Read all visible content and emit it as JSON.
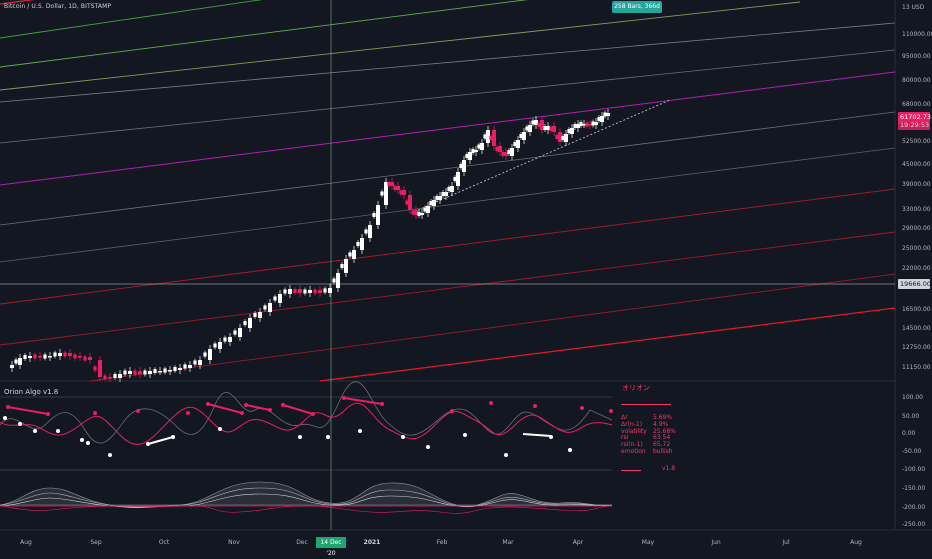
{
  "header": {
    "title": "Bitcoin / U.S. Dollar, 1D, BITSTAMP",
    "bars_badge": "258 Bars, 366d"
  },
  "price_axis": {
    "labels": [
      "13 USD",
      "110000.00",
      "95000.00",
      "80000.00",
      "68000.00",
      "52500.00",
      "45000.00",
      "39000.00",
      "33000.00",
      "29000.00",
      "25000.00",
      "22000.00",
      "16500.00",
      "14500.00",
      "12750.00",
      "11150.00"
    ],
    "current_price": "61702.73",
    "current_price_sub": "19:29:53",
    "crosshair_price": "19666.00"
  },
  "indicator_axis": {
    "labels": [
      "100.00",
      "50.00",
      "0.00",
      "-50.00",
      "-100.00",
      "-150.00",
      "-200.00",
      "-250.00"
    ]
  },
  "time_axis": {
    "labels": [
      "Aug",
      "Sep",
      "Oct",
      "Nov",
      "Dec",
      "2021",
      "Feb",
      "Mar",
      "Apr",
      "May",
      "Jun",
      "Jul",
      "Aug"
    ],
    "crosshair_date": "14 Dec '20"
  },
  "indicator": {
    "title": "Orion Algo v1.8",
    "panel_title": "オリオン",
    "stats": [
      {
        "key": "Δr",
        "value": "5.69%"
      },
      {
        "key": "Δr(n-1)",
        "value": "4.9%"
      },
      {
        "key": "volatility",
        "value": "25.68%"
      },
      {
        "key": "rsi",
        "value": "63.54"
      },
      {
        "key": "rsi(n-1)",
        "value": "65.72"
      },
      {
        "key": "emotion",
        "value": "bullish"
      }
    ],
    "version": "v1.8"
  },
  "colors": {
    "background": "#131722",
    "up_candle": "#ffffff",
    "down_candle": "#e91e63",
    "accent": "#f23b6a",
    "channel_purple": "#c218c2",
    "green_line": "#2e8b2e",
    "red_line": "#c2182b",
    "badge_green": "#26a69a"
  }
}
